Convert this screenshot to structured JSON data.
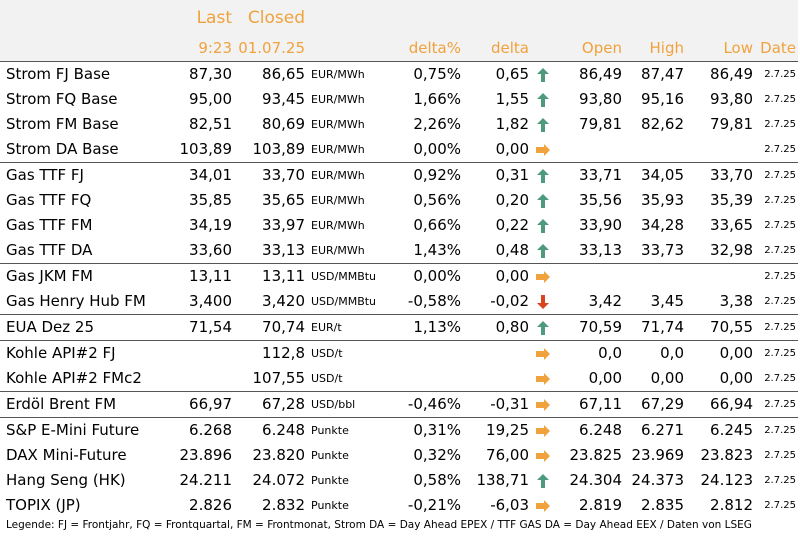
{
  "header": {
    "last_label": "Last",
    "closed_label": "Closed",
    "last_time": "9:23",
    "closed_date": "01.07.25",
    "delta_pct_label": "delta%",
    "delta_label": "delta",
    "open_label": "Open",
    "high_label": "High",
    "low_label": "Low",
    "date_label": "Date"
  },
  "colors": {
    "accent": "#f0a23c",
    "up": "#4e9a7c",
    "down": "#d9451e",
    "flat": "#f0a23c",
    "header_bg": "#f2f2f2"
  },
  "rows": [
    {
      "name": "Strom FJ Base",
      "last": "87,30",
      "closed": "86,65",
      "unit": "EUR/MWh",
      "delta_pct": "0,75%",
      "delta": "0,65",
      "trend": "up",
      "open": "86,49",
      "high": "87,47",
      "low": "86,49",
      "date": "2.7.25"
    },
    {
      "name": "Strom FQ Base",
      "last": "95,00",
      "closed": "93,45",
      "unit": "EUR/MWh",
      "delta_pct": "1,66%",
      "delta": "1,55",
      "trend": "up",
      "open": "93,80",
      "high": "95,16",
      "low": "93,80",
      "date": "2.7.25"
    },
    {
      "name": "Strom FM Base",
      "last": "82,51",
      "closed": "80,69",
      "unit": "EUR/MWh",
      "delta_pct": "2,26%",
      "delta": "1,82",
      "trend": "up",
      "open": "79,81",
      "high": "82,62",
      "low": "79,81",
      "date": "2.7.25"
    },
    {
      "name": "Strom DA Base",
      "last": "103,89",
      "closed": "103,89",
      "unit": "EUR/MWh",
      "delta_pct": "0,00%",
      "delta": "0,00",
      "trend": "flat",
      "open": "",
      "high": "",
      "low": "",
      "date": "2.7.25"
    },
    {
      "name": "Gas TTF FJ",
      "last": "34,01",
      "closed": "33,70",
      "unit": "EUR/MWh",
      "delta_pct": "0,92%",
      "delta": "0,31",
      "trend": "up",
      "open": "33,71",
      "high": "34,05",
      "low": "33,70",
      "date": "2.7.25",
      "sep": true
    },
    {
      "name": "Gas TTF FQ",
      "last": "35,85",
      "closed": "35,65",
      "unit": "EUR/MWh",
      "delta_pct": "0,56%",
      "delta": "0,20",
      "trend": "up",
      "open": "35,56",
      "high": "35,93",
      "low": "35,39",
      "date": "2.7.25"
    },
    {
      "name": "Gas TTF FM",
      "last": "34,19",
      "closed": "33,97",
      "unit": "EUR/MWh",
      "delta_pct": "0,66%",
      "delta": "0,22",
      "trend": "up",
      "open": "33,90",
      "high": "34,28",
      "low": "33,65",
      "date": "2.7.25"
    },
    {
      "name": "Gas TTF DA",
      "last": "33,60",
      "closed": "33,13",
      "unit": "EUR/MWh",
      "delta_pct": "1,43%",
      "delta": "0,48",
      "trend": "up",
      "open": "33,13",
      "high": "33,73",
      "low": "32,98",
      "date": "2.7.25"
    },
    {
      "name": "Gas JKM FM",
      "last": "13,11",
      "closed": "13,11",
      "unit": "USD/MMBtu",
      "delta_pct": "0,00%",
      "delta": "0,00",
      "trend": "flat",
      "open": "",
      "high": "",
      "low": "",
      "date": "2.7.25",
      "sep": true
    },
    {
      "name": "Gas Henry Hub FM",
      "last": "3,400",
      "closed": "3,420",
      "unit": "USD/MMBtu",
      "delta_pct": "-0,58%",
      "delta": "-0,02",
      "trend": "down",
      "open": "3,42",
      "high": "3,45",
      "low": "3,38",
      "date": "2.7.25"
    },
    {
      "name": "EUA Dez 25",
      "last": "71,54",
      "closed": "70,74",
      "unit": "EUR/t",
      "delta_pct": "1,13%",
      "delta": "0,80",
      "trend": "up",
      "open": "70,59",
      "high": "71,74",
      "low": "70,55",
      "date": "2.7.25",
      "sep": true
    },
    {
      "name": "Kohle API#2 FJ",
      "last": "",
      "closed": "112,8",
      "unit": "USD/t",
      "delta_pct": "",
      "delta": "",
      "trend": "flat",
      "open": "0,0",
      "high": "0,0",
      "low": "0,00",
      "date": "2.7.25",
      "sep": true
    },
    {
      "name": "Kohle API#2 FMc2",
      "last": "",
      "closed": "107,55",
      "unit": "USD/t",
      "delta_pct": "",
      "delta": "",
      "trend": "flat",
      "open": "0,00",
      "high": "0,00",
      "low": "0,00",
      "date": "2.7.25"
    },
    {
      "name": "Erdöl Brent FM",
      "last": "66,97",
      "closed": "67,28",
      "unit": "USD/bbl",
      "delta_pct": "-0,46%",
      "delta": "-0,31",
      "trend": "flat",
      "open": "67,11",
      "high": "67,29",
      "low": "66,94",
      "date": "2.7.25",
      "sep": true
    },
    {
      "name": "S&P E-Mini Future",
      "last": "6.268",
      "closed": "6.248",
      "unit": "Punkte",
      "delta_pct": "0,31%",
      "delta": "19,25",
      "trend": "flat",
      "open": "6.248",
      "high": "6.271",
      "low": "6.245",
      "date": "2.7.25",
      "sep": true
    },
    {
      "name": "DAX Mini-Future",
      "last": "23.896",
      "closed": "23.820",
      "unit": "Punkte",
      "delta_pct": "0,32%",
      "delta": "76,00",
      "trend": "flat",
      "open": "23.825",
      "high": "23.969",
      "low": "23.823",
      "date": "2.7.25"
    },
    {
      "name": "Hang Seng (HK)",
      "last": "24.211",
      "closed": "24.072",
      "unit": "Punkte",
      "delta_pct": "0,58%",
      "delta": "138,71",
      "trend": "up",
      "open": "24.304",
      "high": "24.373",
      "low": "24.123",
      "date": "2.7.25"
    },
    {
      "name": "TOPIX (JP)",
      "last": "2.826",
      "closed": "2.832",
      "unit": "Punkte",
      "delta_pct": "-0,21%",
      "delta": "-6,03",
      "trend": "flat",
      "open": "2.819",
      "high": "2.835",
      "low": "2.812",
      "date": "2.7.25"
    }
  ],
  "legend": "Legende: FJ = Frontjahr, FQ = Frontquartal, FM = Frontmonat, Strom DA = Day Ahead EPEX / TTF GAS DA = Day Ahead EEX / Daten von LSEG"
}
